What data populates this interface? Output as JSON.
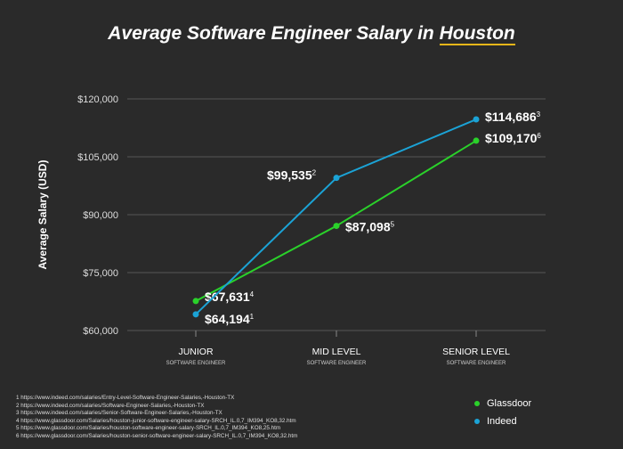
{
  "title_prefix": "Average Software Engineer Salary in ",
  "title_highlight": "Houston",
  "colors": {
    "background": "#2a2a2a",
    "highlight": "#e6b619",
    "glassdoor": "#2ad12a",
    "indeed": "#1ba3d6",
    "grid": "#555555"
  },
  "chart_data": {
    "type": "line",
    "title": "Average Software Engineer Salary in Houston",
    "ylabel": "Average Salary (USD)",
    "xlabel": "",
    "ylim": [
      60000,
      120000
    ],
    "yticks": [
      60000,
      75000,
      90000,
      105000,
      120000
    ],
    "ytick_labels": [
      "$60,000",
      "$75,000",
      "$90,000",
      "$105,000",
      "$120,000"
    ],
    "categories": [
      {
        "label": "JUNIOR",
        "sublabel": "SOFTWARE ENGINEER"
      },
      {
        "label": "MID LEVEL",
        "sublabel": "SOFTWARE ENGINEER"
      },
      {
        "label": "SENIOR LEVEL",
        "sublabel": "SOFTWARE ENGINEER"
      }
    ],
    "grid": "horizontal",
    "legend_placement": "bottom-right",
    "series": [
      {
        "name": "Glassdoor",
        "color": "#2ad12a",
        "values": [
          67631,
          87098,
          109170
        ],
        "labels": [
          "$67,631",
          "$87,098",
          "$109,170"
        ],
        "footnotes": [
          "4",
          "5",
          "6"
        ]
      },
      {
        "name": "Indeed",
        "color": "#1ba3d6",
        "values": [
          64194,
          99535,
          114686
        ],
        "labels": [
          "$64,194",
          "$99,535",
          "$114,686"
        ],
        "footnotes": [
          "1",
          "2",
          "3"
        ]
      }
    ]
  },
  "footnotes": [
    "1 https://www.indeed.com/salaries/Entry-Level-Software-Engineer-Salaries,-Houston-TX",
    "2 https://www.indeed.com/salaries/Software-Engineer-Salaries,-Houston-TX",
    "3 https://www.indeed.com/salaries/Senior-Software-Engineer-Salaries,-Houston-TX",
    "4 https://www.glassdoor.com/Salaries/houston-junior-software-engineer-salary-SRCH_IL.0,7_IM394_KO8,32.htm",
    "5 https://www.glassdoor.com/Salaries/houston-software-engineer-salary-SRCH_IL.0,7_IM394_KO8,25.htm",
    "6 https://www.glassdoor.com/Salaries/houston-senior-software-engineer-salary-SRCH_IL.0,7_IM394_KO8,32.htm"
  ]
}
